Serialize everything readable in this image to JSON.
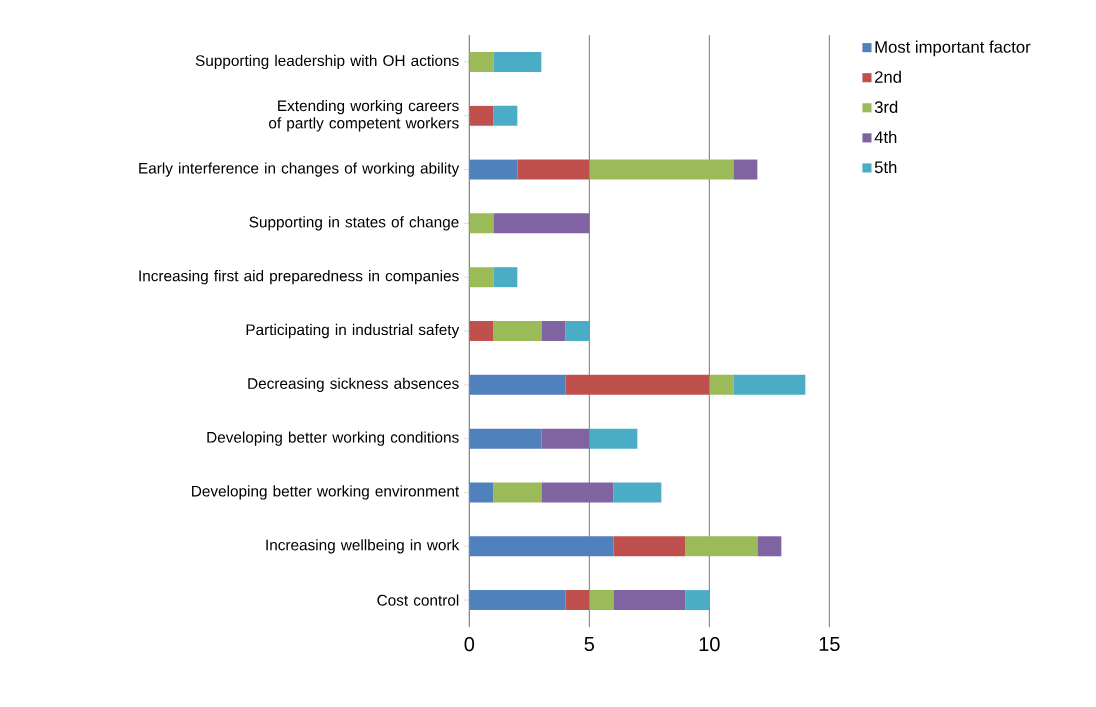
{
  "chart_data": {
    "type": "bar",
    "orientation": "horizontal",
    "stacked": true,
    "categories": [
      "Supporting leadership with OH actions",
      "Extending working careers of partly competent workers",
      "Early interference in changes of working ability",
      "Supporting in states of change",
      "Increasing first aid preparedness in companies",
      "Participating in industrial safety",
      "Decreasing sickness absences",
      "Developing better working conditions",
      "Developing better working environment",
      "Increasing wellbeing in work",
      "Cost control"
    ],
    "series": [
      {
        "name": "Most important factor",
        "color": "#4f81bd",
        "values": [
          0,
          0,
          2,
          0,
          0,
          0,
          4,
          3,
          1,
          6,
          4
        ]
      },
      {
        "name": "2nd",
        "color": "#c0504d",
        "values": [
          0,
          1,
          3,
          0,
          0,
          1,
          6,
          0,
          0,
          3,
          1
        ]
      },
      {
        "name": "3rd",
        "color": "#9bbb59",
        "values": [
          1,
          0,
          6,
          1,
          1,
          2,
          1,
          0,
          2,
          3,
          1
        ]
      },
      {
        "name": "4th",
        "color": "#8064a2",
        "values": [
          0,
          0,
          1,
          4,
          0,
          1,
          0,
          2,
          3,
          1,
          3
        ]
      },
      {
        "name": "5th",
        "color": "#4bacc6",
        "values": [
          2,
          1,
          0,
          0,
          1,
          1,
          3,
          2,
          2,
          0,
          1
        ]
      }
    ],
    "xlim": [
      0,
      15
    ],
    "xticks": [
      0,
      5,
      10,
      15
    ],
    "grid": "x",
    "legend": "right"
  }
}
